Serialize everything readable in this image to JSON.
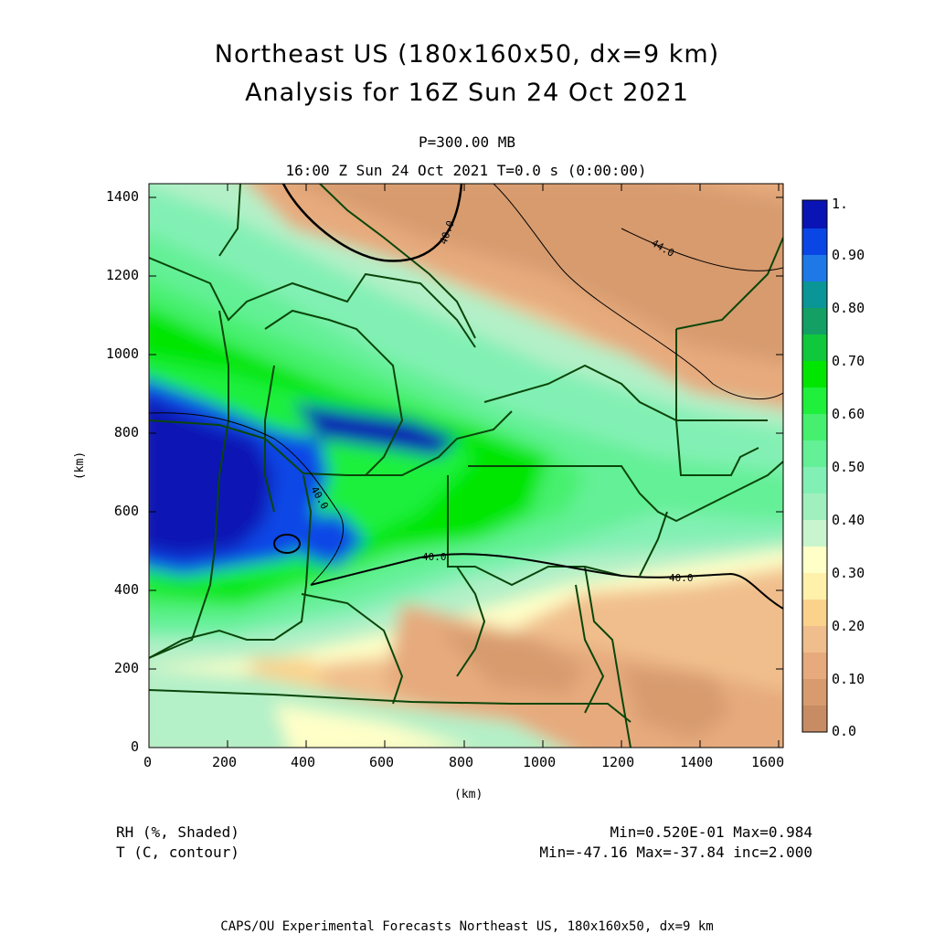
{
  "header": {
    "title": "Northeast US (180x160x50, dx=9 km)",
    "subtitle": "Analysis for 16Z Sun 24 Oct 2021",
    "level": "P=300.00 MB",
    "valid_time": "16:00 Z Sun 24 Oct 2021   T=0.0 s (0:00:00)"
  },
  "axes": {
    "x_unit": "(km)",
    "y_unit": "(km)",
    "x_ticks": [
      "0",
      "200",
      "400",
      "600",
      "800",
      "1000",
      "1200",
      "1400",
      "1600"
    ],
    "y_ticks": [
      "0",
      "200",
      "400",
      "600",
      "800",
      "1000",
      "1200",
      "1400"
    ]
  },
  "colorbar": {
    "labels": [
      "1.",
      "0.90",
      "0.80",
      "0.70",
      "0.60",
      "0.50",
      "0.40",
      "0.30",
      "0.20",
      "0.10",
      "0.0"
    ],
    "colors": [
      "#0a14b4",
      "#0a46e6",
      "#1e78e6",
      "#0a9696",
      "#14a064",
      "#0fc83c",
      "#00e600",
      "#1ef03c",
      "#46f06e",
      "#64f096",
      "#82f0b4",
      "#b4f0c8",
      "#ffffc8",
      "#fff0aa",
      "#fad28c",
      "#f0be8c",
      "#e6aa7d",
      "#d79b6e",
      "#c88c64"
    ]
  },
  "footer": {
    "var1_name": "RH (%, Shaded)",
    "var1_stats": "Min=0.520E-01 Max=0.984",
    "var2_name": "T (C, contour)",
    "var2_stats": "Min=-47.16  Max=-37.84  inc=2.000",
    "credit": "CAPS/OU Experimental Forecasts  Northeast US, 180x160x50, dx=9 km"
  },
  "contour_labels": [
    "40.0",
    "44.0",
    "40.0",
    "40.0",
    "40.0"
  ]
}
